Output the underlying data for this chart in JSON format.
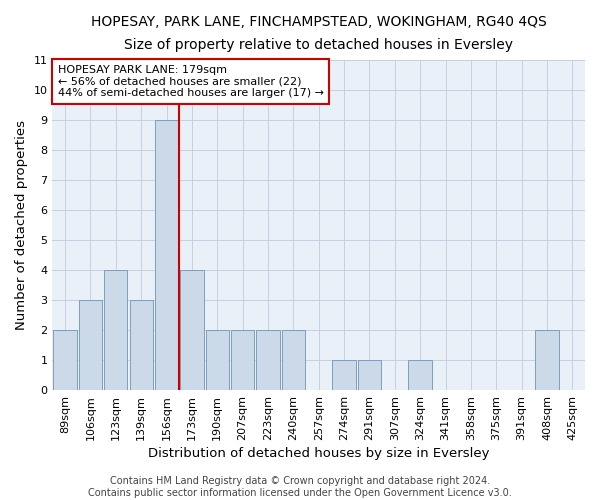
{
  "title": "HOPESAY, PARK LANE, FINCHAMPSTEAD, WOKINGHAM, RG40 4QS",
  "subtitle": "Size of property relative to detached houses in Eversley",
  "xlabel": "Distribution of detached houses by size in Eversley",
  "ylabel": "Number of detached properties",
  "all_categories": [
    "89sqm",
    "106sqm",
    "123sqm",
    "139sqm",
    "156sqm",
    "173sqm",
    "190sqm",
    "207sqm",
    "223sqm",
    "240sqm",
    "257sqm",
    "274sqm",
    "291sqm",
    "307sqm",
    "324sqm",
    "341sqm",
    "358sqm",
    "375sqm",
    "391sqm",
    "408sqm",
    "425sqm"
  ],
  "bar_heights": [
    2,
    3,
    4,
    3,
    9,
    4,
    2,
    2,
    2,
    2,
    0,
    1,
    1,
    0,
    1,
    0,
    0,
    0,
    0,
    2,
    0
  ],
  "bar_color": "#ccd9e8",
  "bar_edge_color": "#7a9fc0",
  "grid_color": "#c5cfe0",
  "background_color": "#eaf0f8",
  "vline_color": "#cc0000",
  "annotation_line1": "HOPESAY PARK LANE: 179sqm",
  "annotation_line2": "← 56% of detached houses are smaller (22)",
  "annotation_line3": "44% of semi-detached houses are larger (17) →",
  "annotation_box_color": "#cc0000",
  "ylim": [
    0,
    11
  ],
  "yticks": [
    0,
    1,
    2,
    3,
    4,
    5,
    6,
    7,
    8,
    9,
    10,
    11
  ],
  "footer_text": "Contains HM Land Registry data © Crown copyright and database right 2024.\nContains public sector information licensed under the Open Government Licence v3.0.",
  "title_fontsize": 10,
  "subtitle_fontsize": 10,
  "axis_label_fontsize": 9.5,
  "tick_fontsize": 8,
  "annotation_fontsize": 8,
  "footer_fontsize": 7
}
